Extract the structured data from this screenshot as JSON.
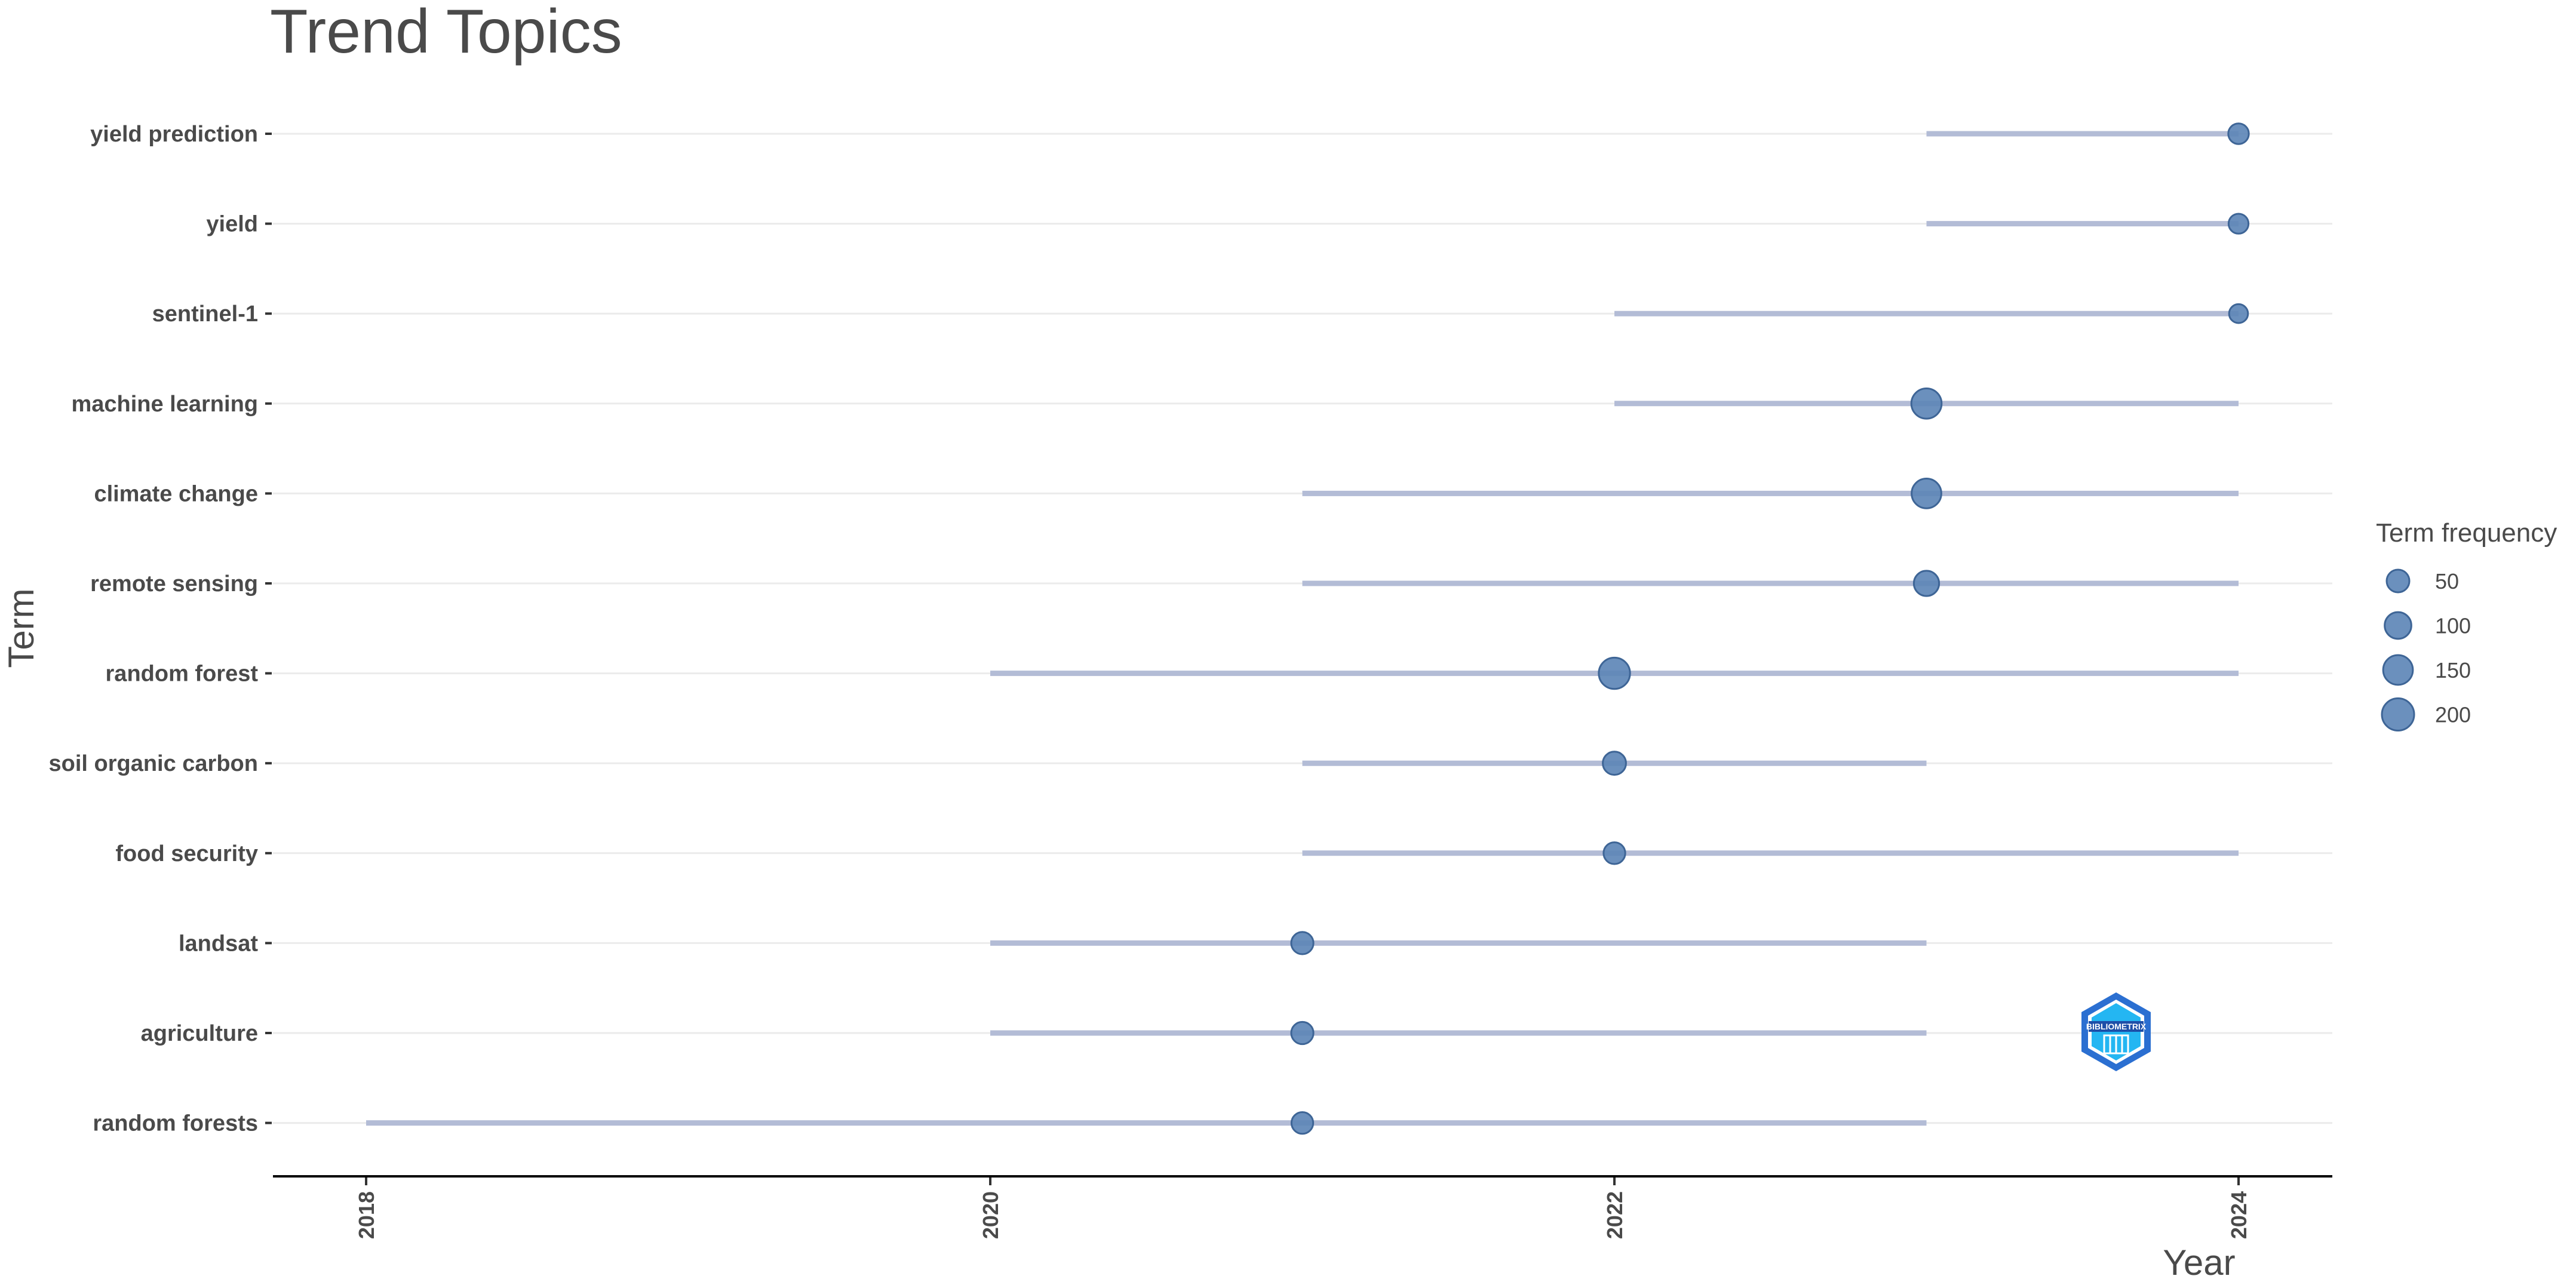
{
  "chart_data": {
    "type": "scatter",
    "title": "Trend Topics",
    "xlabel": "Year",
    "ylabel": "Term",
    "xlim": [
      2017.7,
      2024.3
    ],
    "x_ticks": [
      "2018",
      "2020",
      "2022",
      "2024"
    ],
    "grid": "horizontal",
    "legend": {
      "title": "Term frequency",
      "placement": "right",
      "sizes": [
        {
          "value": 50,
          "label": "50"
        },
        {
          "value": 100,
          "label": "100"
        },
        {
          "value": 150,
          "label": "150"
        },
        {
          "value": 200,
          "label": "200"
        }
      ]
    },
    "terms": [
      {
        "term": "yield prediction",
        "start": 2023,
        "median": 2024,
        "end": 2024,
        "freq": 30
      },
      {
        "term": "yield",
        "start": 2023,
        "median": 2024,
        "end": 2024,
        "freq": 25
      },
      {
        "term": "sentinel-1",
        "start": 2022,
        "median": 2024,
        "end": 2024,
        "freq": 18
      },
      {
        "term": "machine learning",
        "start": 2022,
        "median": 2023,
        "end": 2024,
        "freq": 160
      },
      {
        "term": "climate change",
        "start": 2021,
        "median": 2023,
        "end": 2024,
        "freq": 150
      },
      {
        "term": "remote sensing",
        "start": 2021,
        "median": 2023,
        "end": 2024,
        "freq": 80
      },
      {
        "term": "random forest",
        "start": 2020,
        "median": 2022,
        "end": 2024,
        "freq": 180
      },
      {
        "term": "soil organic carbon",
        "start": 2021,
        "median": 2022,
        "end": 2023,
        "freq": 55
      },
      {
        "term": "food security",
        "start": 2021,
        "median": 2022,
        "end": 2024,
        "freq": 40
      },
      {
        "term": "landsat",
        "start": 2020,
        "median": 2021,
        "end": 2023,
        "freq": 45
      },
      {
        "term": "agriculture",
        "start": 2020,
        "median": 2021,
        "end": 2023,
        "freq": 45
      },
      {
        "term": "random forests",
        "start": 2018,
        "median": 2021,
        "end": 2023,
        "freq": 40
      }
    ],
    "colors": {
      "segment": "#b3bcd6",
      "point": "#5b84b6",
      "point_stroke": "#3e6596",
      "grid": "#ebebeb",
      "axis": "#000000"
    }
  },
  "logo": {
    "text": "BIBLIOMETRIX",
    "icon": "bibliometrix-logo-icon",
    "colors": {
      "outer": "#2b6fd1",
      "inner": "#24b6f2"
    }
  }
}
